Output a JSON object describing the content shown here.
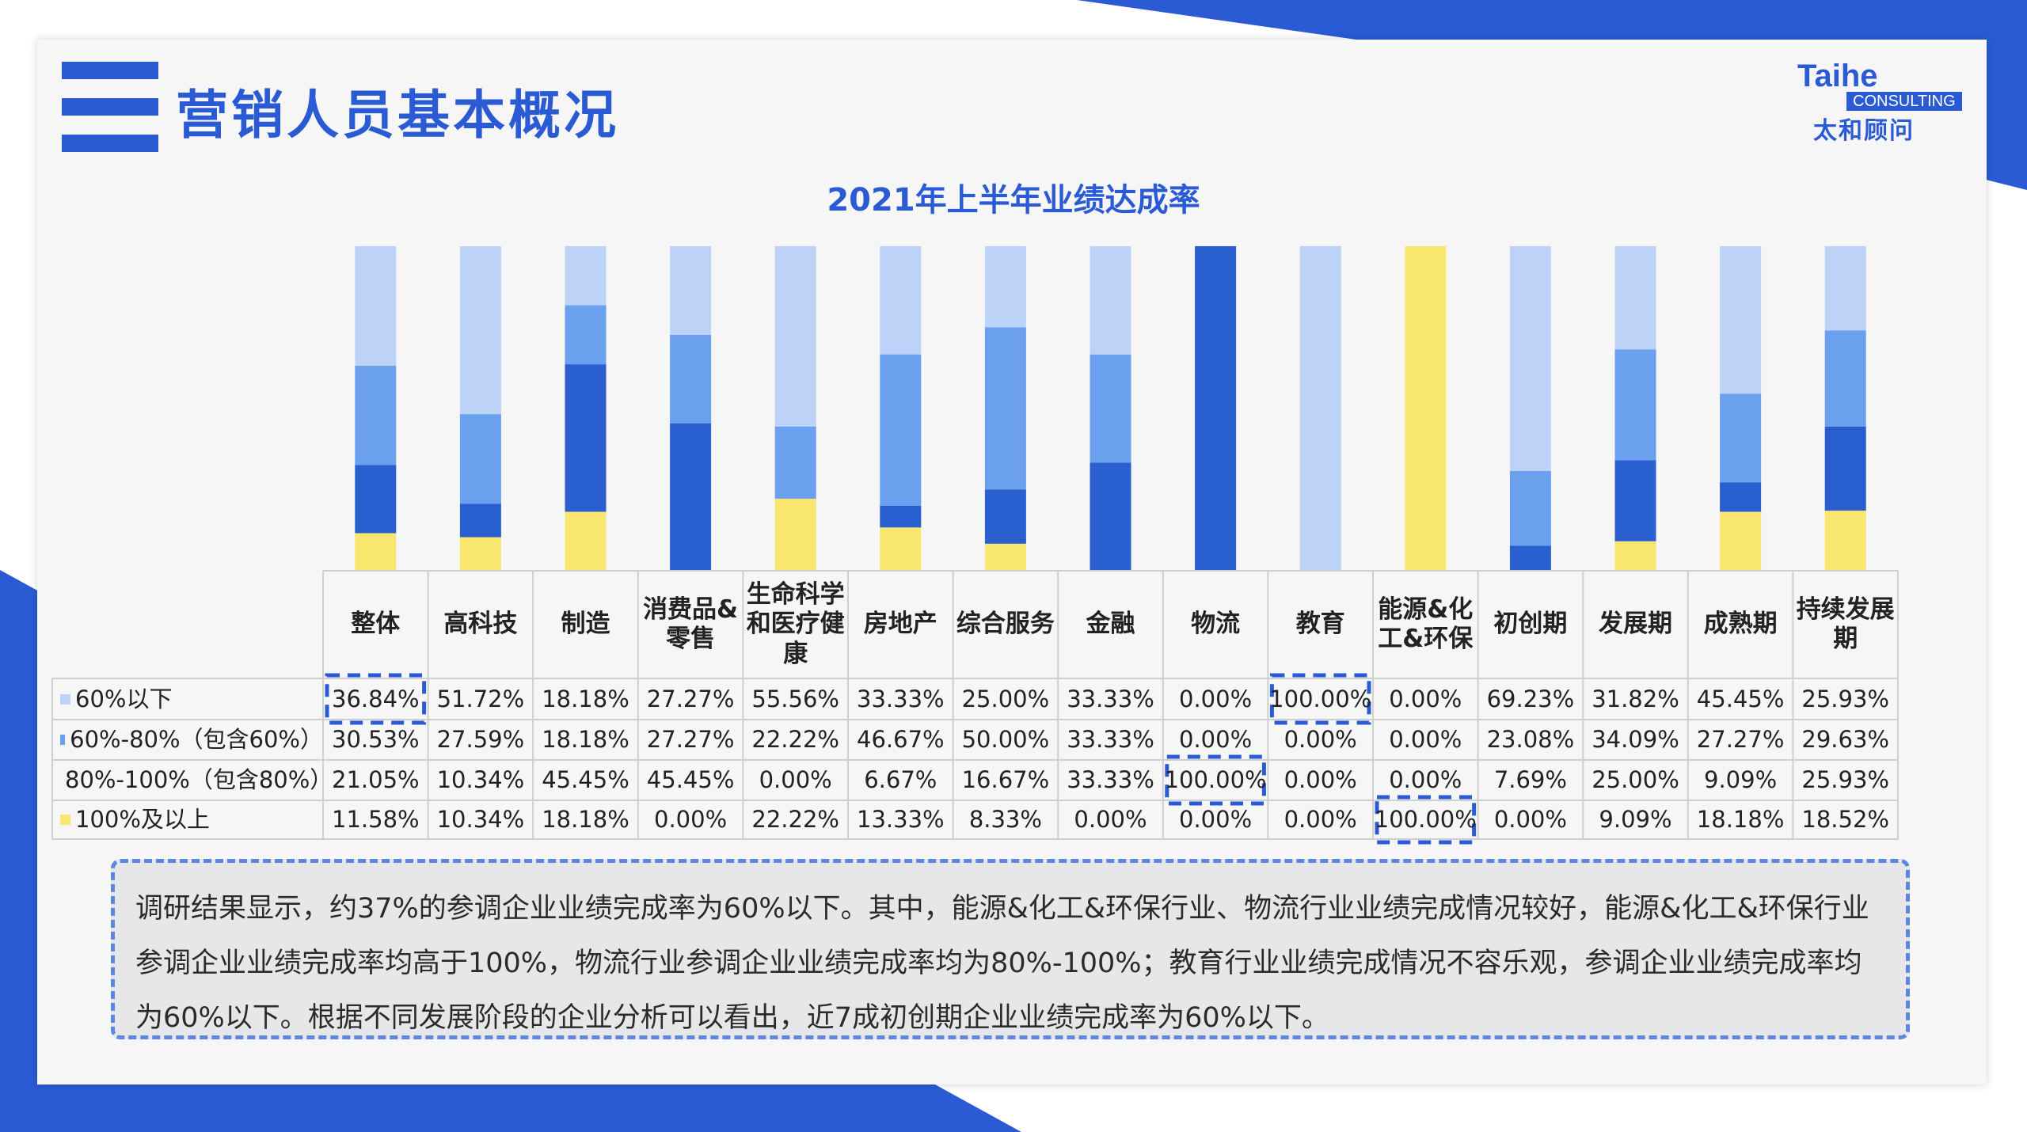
{
  "header": {
    "title": "营销人员基本概况",
    "logo": {
      "word": "Taihe",
      "tag": "CONSULTING",
      "cn": "太和顾问"
    }
  },
  "colors": {
    "brand": "#2a5bd4",
    "below60": "#bcd3f7",
    "from60to80": "#6aa0ee",
    "from80to100": "#2a5fd0",
    "above100": "#f8e66e"
  },
  "chart_data": {
    "type": "bar",
    "stacked": true,
    "title": "2021年上半年业绩达成率",
    "categories": [
      "整体",
      "高科技",
      "制造",
      "消费品&零售",
      "生命科学和医疗健康",
      "房地产",
      "综合服务",
      "金融",
      "物流",
      "教育",
      "能源&化工&环保",
      "初创期",
      "发展期",
      "成熟期",
      "持续发展期"
    ],
    "series": [
      {
        "name": "60%以下",
        "color": "#bcd3f7",
        "values": [
          36.84,
          51.72,
          18.18,
          27.27,
          55.56,
          33.33,
          25.0,
          33.33,
          0.0,
          100.0,
          0.0,
          69.23,
          31.82,
          45.45,
          25.93
        ]
      },
      {
        "name": "60%-80%（包含60%）",
        "color": "#6aa0ee",
        "values": [
          30.53,
          27.59,
          18.18,
          27.27,
          22.22,
          46.67,
          50.0,
          33.33,
          0.0,
          0.0,
          0.0,
          23.08,
          34.09,
          27.27,
          29.63
        ]
      },
      {
        "name": "80%-100%（包含80%）",
        "color": "#2a5fd0",
        "values": [
          21.05,
          10.34,
          45.45,
          45.45,
          0.0,
          6.67,
          16.67,
          33.33,
          100.0,
          0.0,
          0.0,
          7.69,
          25.0,
          9.09,
          25.93
        ]
      },
      {
        "name": "100%及以上",
        "color": "#f8e66e",
        "values": [
          11.58,
          10.34,
          18.18,
          0.0,
          22.22,
          13.33,
          8.33,
          0.0,
          0.0,
          0.0,
          100.0,
          0.0,
          9.09,
          18.18,
          18.52
        ]
      }
    ],
    "table": {
      "rows": [
        {
          "label": "60%以下",
          "cells": [
            "36.84%",
            "51.72%",
            "18.18%",
            "27.27%",
            "55.56%",
            "33.33%",
            "25.00%",
            "33.33%",
            "0.00%",
            "100.00%",
            "0.00%",
            "69.23%",
            "31.82%",
            "45.45%",
            "25.93%"
          ]
        },
        {
          "label": "60%-80%（包含60%）",
          "cells": [
            "30.53%",
            "27.59%",
            "18.18%",
            "27.27%",
            "22.22%",
            "46.67%",
            "50.00%",
            "33.33%",
            "0.00%",
            "0.00%",
            "0.00%",
            "23.08%",
            "34.09%",
            "27.27%",
            "29.63%"
          ]
        },
        {
          "label": "80%-100%（包含80%）",
          "cells": [
            "21.05%",
            "10.34%",
            "45.45%",
            "45.45%",
            "0.00%",
            "6.67%",
            "16.67%",
            "33.33%",
            "100.00%",
            "0.00%",
            "0.00%",
            "7.69%",
            "25.00%",
            "9.09%",
            "25.93%"
          ]
        },
        {
          "label": "100%及以上",
          "cells": [
            "11.58%",
            "10.34%",
            "18.18%",
            "0.00%",
            "22.22%",
            "13.33%",
            "8.33%",
            "0.00%",
            "0.00%",
            "0.00%",
            "100.00%",
            "0.00%",
            "9.09%",
            "18.18%",
            "18.52%"
          ]
        }
      ],
      "highlighted_cells": [
        [
          0,
          0
        ],
        [
          0,
          9
        ],
        [
          2,
          8
        ],
        [
          3,
          10
        ]
      ]
    },
    "ylim": [
      0,
      100
    ],
    "grid": false,
    "legend": "table-rows"
  },
  "note": "调研结果显示，约37%的参调企业业绩完成率为60%以下。其中，能源&化工&环保行业、物流行业业绩完成情况较好，能源&化工&环保行业参调企业业绩完成率均高于100%，物流行业参调企业业绩完成率均为80%-100%；教育行业业绩完成情况不容乐观，参调企业业绩完成率均为60%以下。根据不同发展阶段的企业分析可以看出，近7成初创期企业业绩完成率为60%以下。"
}
